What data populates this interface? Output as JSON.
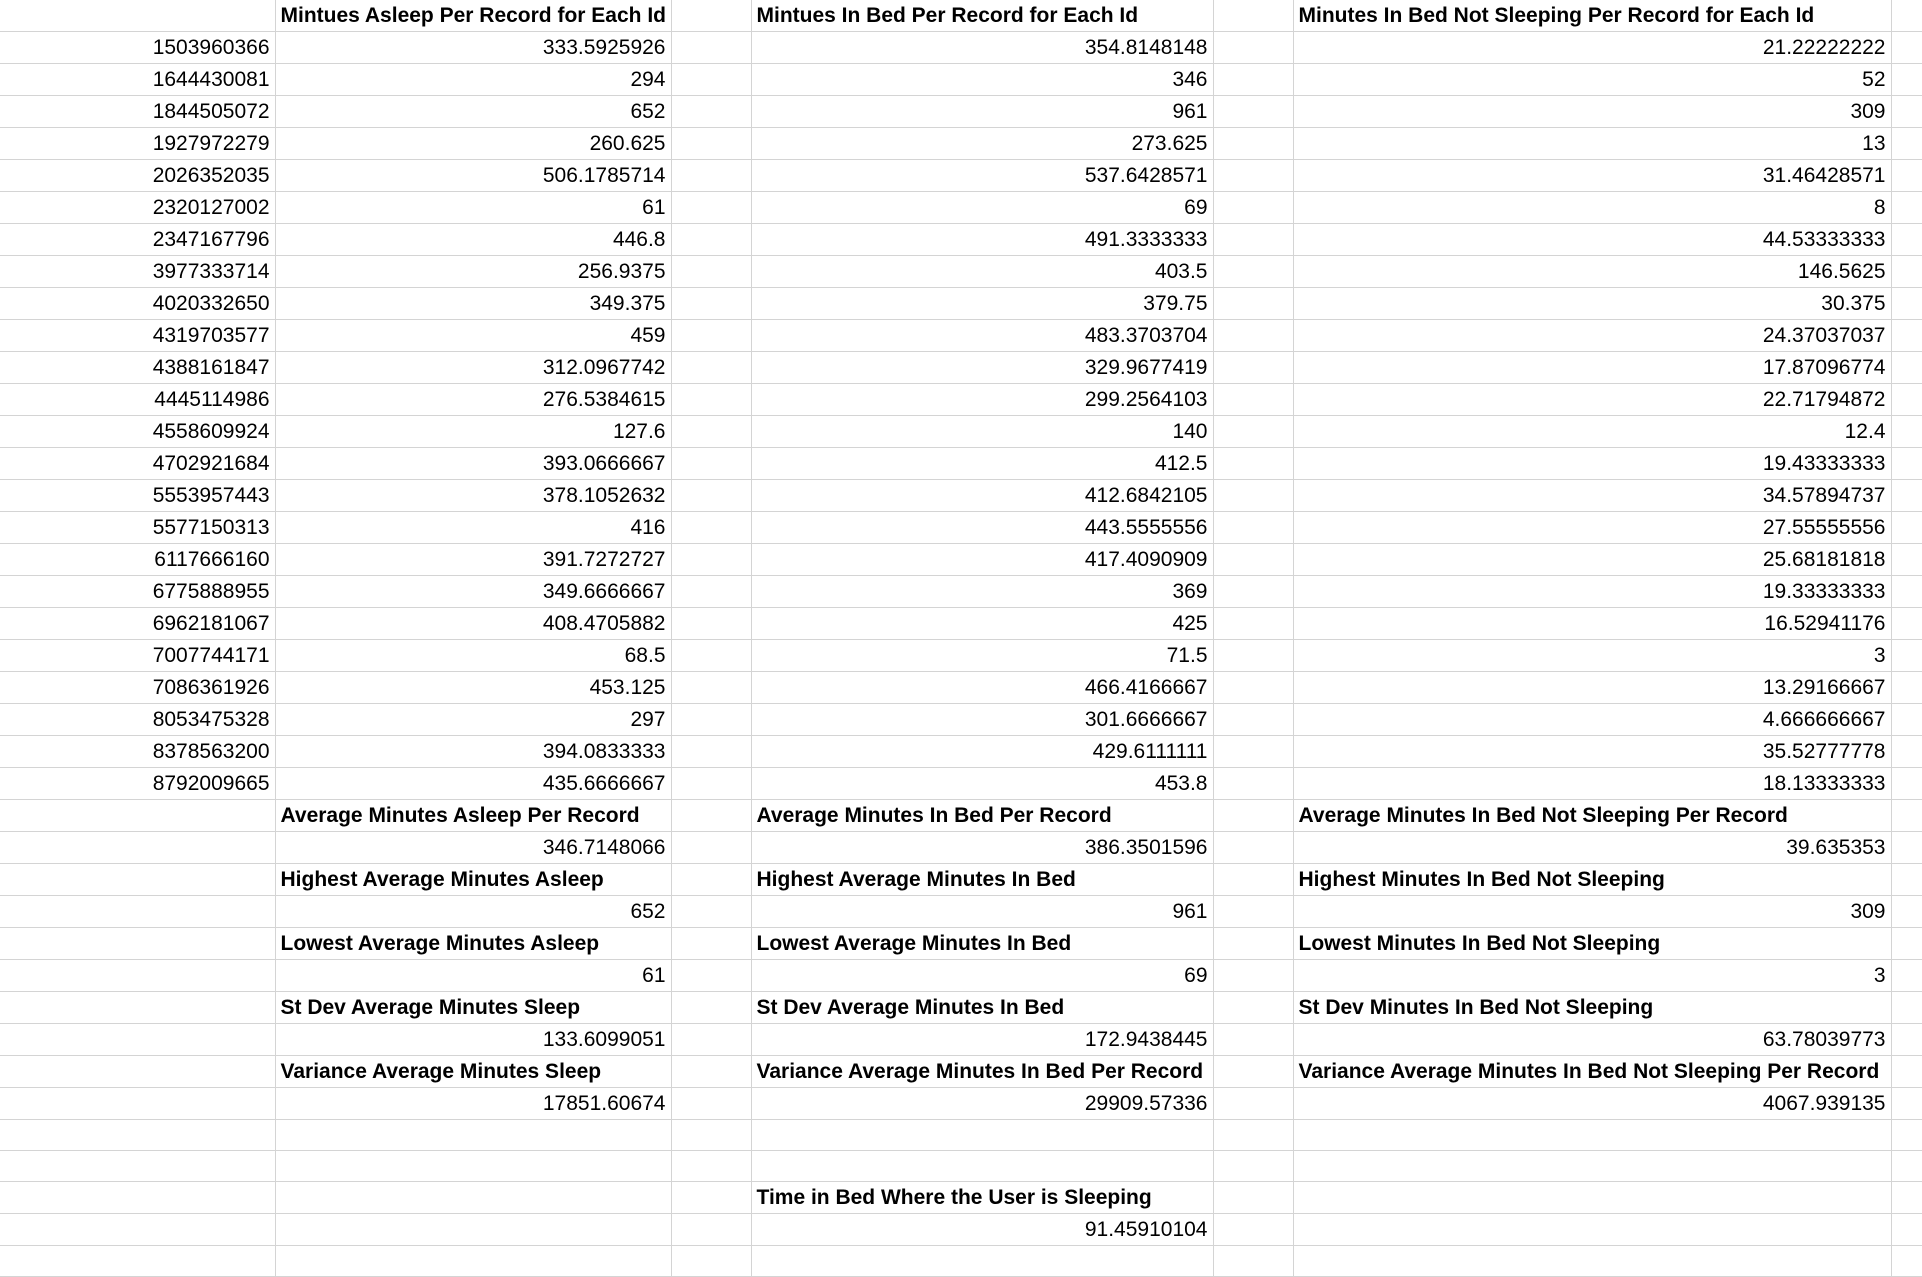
{
  "headers": {
    "a": "",
    "b": "Mintues Asleep Per Record for Each Id",
    "c": "",
    "d": "Mintues In Bed Per Record for Each Id",
    "e": "",
    "f": "Minutes In Bed Not Sleeping Per Record for Each Id",
    "g": ""
  },
  "records": [
    {
      "id": "1503960366",
      "asleep": "333.5925926",
      "in_bed": "354.8148148",
      "not_sleeping": "21.22222222"
    },
    {
      "id": "1644430081",
      "asleep": "294",
      "in_bed": "346",
      "not_sleeping": "52"
    },
    {
      "id": "1844505072",
      "asleep": "652",
      "in_bed": "961",
      "not_sleeping": "309"
    },
    {
      "id": "1927972279",
      "asleep": "260.625",
      "in_bed": "273.625",
      "not_sleeping": "13"
    },
    {
      "id": "2026352035",
      "asleep": "506.1785714",
      "in_bed": "537.6428571",
      "not_sleeping": "31.46428571"
    },
    {
      "id": "2320127002",
      "asleep": "61",
      "in_bed": "69",
      "not_sleeping": "8"
    },
    {
      "id": "2347167796",
      "asleep": "446.8",
      "in_bed": "491.3333333",
      "not_sleeping": "44.53333333"
    },
    {
      "id": "3977333714",
      "asleep": "256.9375",
      "in_bed": "403.5",
      "not_sleeping": "146.5625"
    },
    {
      "id": "4020332650",
      "asleep": "349.375",
      "in_bed": "379.75",
      "not_sleeping": "30.375"
    },
    {
      "id": "4319703577",
      "asleep": "459",
      "in_bed": "483.3703704",
      "not_sleeping": "24.37037037"
    },
    {
      "id": "4388161847",
      "asleep": "312.0967742",
      "in_bed": "329.9677419",
      "not_sleeping": "17.87096774"
    },
    {
      "id": "4445114986",
      "asleep": "276.5384615",
      "in_bed": "299.2564103",
      "not_sleeping": "22.71794872"
    },
    {
      "id": "4558609924",
      "asleep": "127.6",
      "in_bed": "140",
      "not_sleeping": "12.4"
    },
    {
      "id": "4702921684",
      "asleep": "393.0666667",
      "in_bed": "412.5",
      "not_sleeping": "19.43333333"
    },
    {
      "id": "5553957443",
      "asleep": "378.1052632",
      "in_bed": "412.6842105",
      "not_sleeping": "34.57894737"
    },
    {
      "id": "5577150313",
      "asleep": "416",
      "in_bed": "443.5555556",
      "not_sleeping": "27.55555556"
    },
    {
      "id": "6117666160",
      "asleep": "391.7272727",
      "in_bed": "417.4090909",
      "not_sleeping": "25.68181818"
    },
    {
      "id": "6775888955",
      "asleep": "349.6666667",
      "in_bed": "369",
      "not_sleeping": "19.33333333"
    },
    {
      "id": "6962181067",
      "asleep": "408.4705882",
      "in_bed": "425",
      "not_sleeping": "16.52941176"
    },
    {
      "id": "7007744171",
      "asleep": "68.5",
      "in_bed": "71.5",
      "not_sleeping": "3"
    },
    {
      "id": "7086361926",
      "asleep": "453.125",
      "in_bed": "466.4166667",
      "not_sleeping": "13.29166667"
    },
    {
      "id": "8053475328",
      "asleep": "297",
      "in_bed": "301.6666667",
      "not_sleeping": "4.666666667"
    },
    {
      "id": "8378563200",
      "asleep": "394.0833333",
      "in_bed": "429.6111111",
      "not_sleeping": "35.52777778"
    },
    {
      "id": "8792009665",
      "asleep": "435.6666667",
      "in_bed": "453.8",
      "not_sleeping": "18.13333333"
    }
  ],
  "stats": [
    {
      "asleep_label": "Average Minutes Asleep Per Record",
      "asleep_value": "346.7148066",
      "in_bed_label": "Average Minutes In Bed Per Record",
      "in_bed_value": "386.3501596",
      "not_sleeping_label": "Average Minutes In Bed Not Sleeping Per Record",
      "not_sleeping_value": "39.635353"
    },
    {
      "asleep_label": "Highest Average Minutes Asleep",
      "asleep_value": "652",
      "in_bed_label": "Highest Average Minutes In Bed",
      "in_bed_value": "961",
      "not_sleeping_label": "Highest Minutes In Bed Not Sleeping",
      "not_sleeping_value": "309"
    },
    {
      "asleep_label": "Lowest Average Minutes Asleep",
      "asleep_value": "61",
      "in_bed_label": "Lowest Average Minutes In Bed",
      "in_bed_value": "69",
      "not_sleeping_label": "Lowest Minutes In Bed Not Sleeping",
      "not_sleeping_value": "3"
    },
    {
      "asleep_label": "St Dev Average Minutes Sleep",
      "asleep_value": "133.6099051",
      "in_bed_label": "St Dev Average Minutes In Bed",
      "in_bed_value": "172.9438445",
      "not_sleeping_label": "St Dev  Minutes In Bed Not Sleeping",
      "not_sleeping_value": "63.78039773"
    },
    {
      "asleep_label": "Variance Average Minutes Sleep",
      "asleep_value": "17851.60674",
      "in_bed_label": "Variance Average Minutes In Bed Per Record",
      "in_bed_value": "29909.57336",
      "not_sleeping_label": "Variance Average Minutes In Bed Not Sleeping Per Record",
      "not_sleeping_value": "4067.939135"
    }
  ],
  "sleep_ratio": {
    "label": "Time in Bed Where the User is Sleeping",
    "value": "91.45910104"
  }
}
